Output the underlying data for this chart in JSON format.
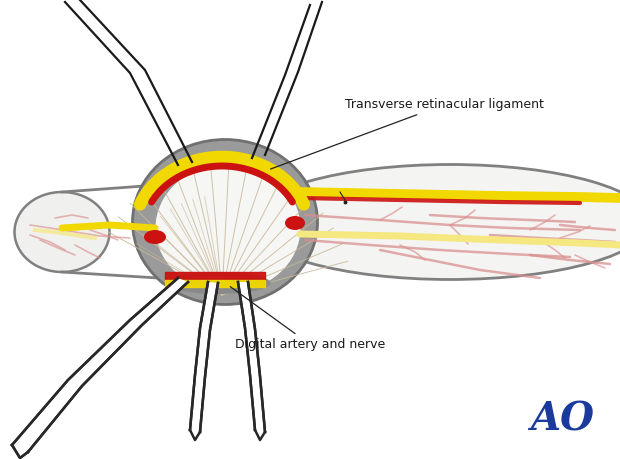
{
  "background_color": "#ffffff",
  "label_transverse": "Transverse retinacular ligament",
  "label_digital": "Digital artery and nerve",
  "label_color": "#1a1a1a",
  "ao_color": "#1a3a9c",
  "ao_text": "AO",
  "gray_dark": "#808080",
  "gray_mid": "#999999",
  "gray_light": "#c8c8c8",
  "yellow": "#f0d800",
  "yellow_light": "#f5e880",
  "red": "#cc1111",
  "pink": "#d99090",
  "pink_light": "#e8b8b8",
  "white": "#ffffff",
  "skin_white": "#f8f8f6",
  "line_color": "#333333",
  "tendon_color": "#c8b898"
}
